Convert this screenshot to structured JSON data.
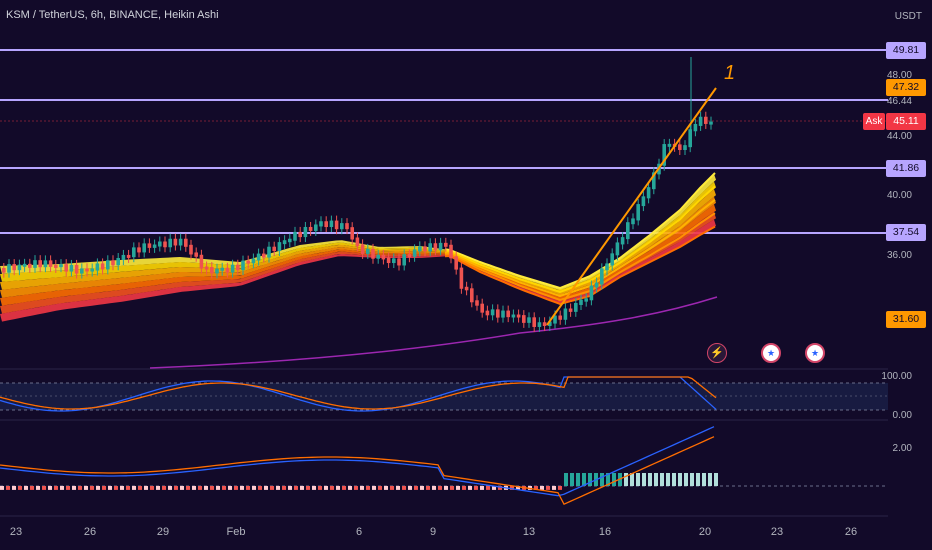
{
  "header": {
    "title": "KSM / TetherUS, 6h, BINANCE, Heikin Ashi",
    "currency": "USDT"
  },
  "price_axis": {
    "labels": [
      "48.00",
      "46.44",
      "44.00",
      "40.00",
      "36.00"
    ],
    "ask_label": "Ask"
  },
  "levels": [
    {
      "value": "49.81"
    },
    {
      "value": "47.32"
    },
    {
      "value": "41.86"
    },
    {
      "value": "37.54"
    },
    {
      "value": "31.60"
    }
  ],
  "current_price": "45.11",
  "wave_label": "1",
  "stoch": {
    "labels": [
      "100.00",
      "0.00"
    ]
  },
  "macd": {
    "labels": [
      "2.00"
    ]
  },
  "time_axis": [
    "23",
    "26",
    "29",
    "Feb",
    "6",
    "9",
    "13",
    "16",
    "20",
    "23",
    "26"
  ],
  "colors": {
    "bg": "#120a29",
    "level": "#b7a5ff",
    "up": "#26a69a",
    "down": "#ef5350",
    "ribbon_top": "#ffeb3b",
    "ribbon_bottom": "#f23645",
    "ma": "#9c27b0",
    "trend": "#ff9800"
  },
  "events": [
    "lightning-icon",
    "us-flag-icon",
    "us-flag-icon"
  ]
}
